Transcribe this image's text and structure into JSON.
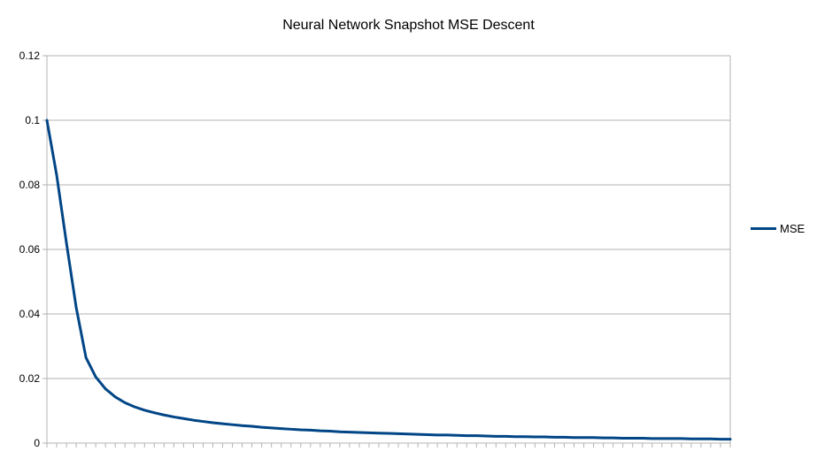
{
  "chart_data": {
    "type": "line",
    "title": "Neural Network Snapshot MSE Descent",
    "xlabel": "",
    "ylabel": "",
    "ylim": [
      0,
      0.12
    ],
    "yticks": [
      "0",
      "0.02",
      "0.04",
      "0.06",
      "0.08",
      "0.1",
      "0.12"
    ],
    "grid": true,
    "legend_position": "right",
    "series": [
      {
        "name": "MSE",
        "color": "#004586",
        "values": [
          0.1,
          0.083,
          0.062,
          0.042,
          0.0265,
          0.0205,
          0.0168,
          0.0143,
          0.0125,
          0.0112,
          0.0102,
          0.0094,
          0.0087,
          0.0081,
          0.0076,
          0.0071,
          0.0067,
          0.0063,
          0.006,
          0.0057,
          0.0054,
          0.0052,
          0.0049,
          0.0047,
          0.0045,
          0.0043,
          0.0041,
          0.004,
          0.0038,
          0.0037,
          0.0035,
          0.0034,
          0.0033,
          0.0032,
          0.0031,
          0.003,
          0.0029,
          0.0028,
          0.0027,
          0.0026,
          0.0025,
          0.0025,
          0.0024,
          0.0023,
          0.0023,
          0.0022,
          0.0021,
          0.0021,
          0.002,
          0.002,
          0.0019,
          0.0019,
          0.0018,
          0.0018,
          0.0017,
          0.0017,
          0.0017,
          0.0016,
          0.0016,
          0.0015,
          0.0015,
          0.0015,
          0.0014,
          0.0014,
          0.0014,
          0.0014,
          0.0013,
          0.0013,
          0.0013,
          0.0012,
          0.0012
        ]
      }
    ]
  }
}
